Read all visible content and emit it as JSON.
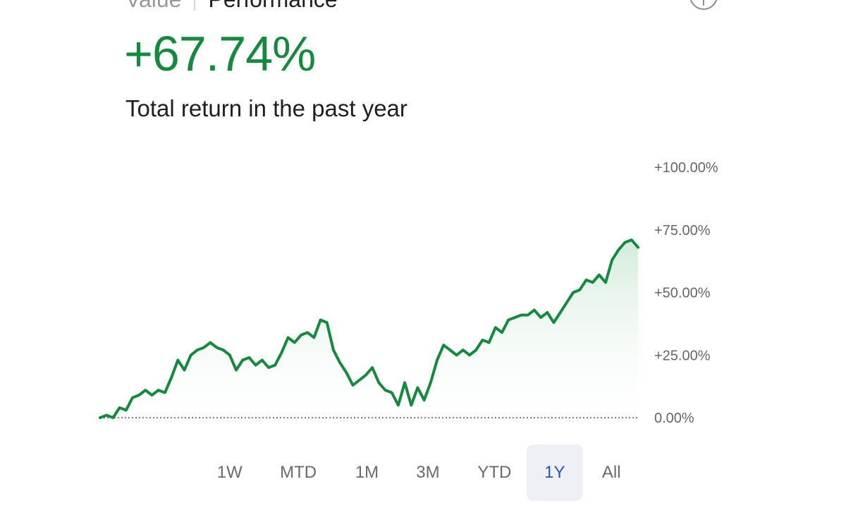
{
  "tabs": {
    "value": "Value",
    "performance": "Performance"
  },
  "info_icon": "info-icon",
  "headline": "+67.74%",
  "subtitle": "Total return in the past year",
  "colors": {
    "line": "#17893f",
    "fill": "#e3f3e8",
    "accent_range": "#2a55b5"
  },
  "chart_data": {
    "type": "area",
    "title": "",
    "xlabel": "",
    "ylabel": "",
    "ylim": [
      0,
      100
    ],
    "y_ticks": [
      "+100.00%",
      "+75.00%",
      "+50.00%",
      "+25.00%",
      "0.00%"
    ],
    "y_tick_values": [
      100,
      75,
      50,
      25,
      0
    ],
    "baseline": 0,
    "grid": false,
    "series": [
      {
        "values": [
          0,
          1,
          0,
          4,
          3,
          8,
          9,
          11,
          9,
          11,
          10,
          16,
          23,
          19,
          25,
          27,
          28,
          30,
          28,
          27,
          25,
          19,
          23,
          24,
          21,
          23,
          20,
          21,
          26,
          32,
          30,
          33,
          34,
          32,
          39,
          38,
          27,
          22,
          18,
          13,
          15,
          17,
          20,
          14,
          11,
          10,
          5,
          14,
          5,
          12,
          7,
          14,
          23,
          29,
          27,
          25,
          27,
          25,
          27,
          31,
          30,
          36,
          34,
          39,
          40,
          41,
          41,
          43,
          40,
          42,
          38,
          42,
          46,
          50,
          51,
          55,
          54,
          57,
          54,
          63,
          67,
          70,
          71,
          68
        ]
      }
    ]
  },
  "ranges": [
    {
      "label": "1W",
      "active": false
    },
    {
      "label": "MTD",
      "active": false
    },
    {
      "label": "1M",
      "active": false
    },
    {
      "label": "3M",
      "active": false
    },
    {
      "label": "YTD",
      "active": false
    },
    {
      "label": "1Y",
      "active": true
    },
    {
      "label": "All",
      "active": false
    }
  ]
}
